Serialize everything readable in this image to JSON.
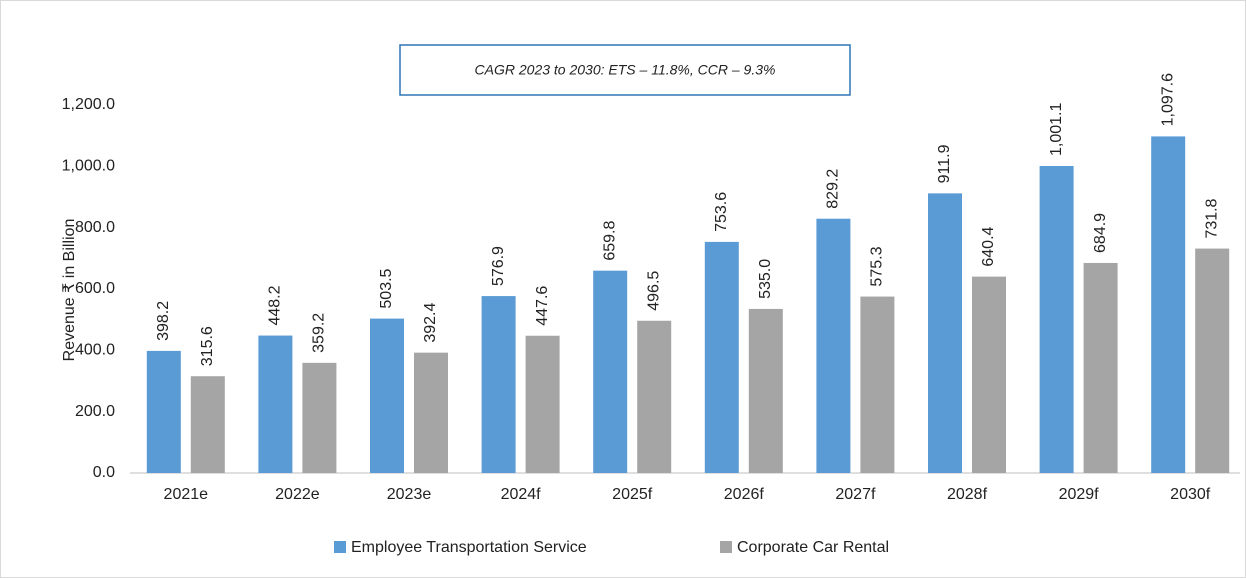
{
  "chart_data": {
    "type": "bar",
    "annotation": "CAGR 2023 to 2030: ETS – 11.8%, CCR – 9.3%",
    "y_label": "Revenue ₹ in Billion",
    "categories": [
      "2021e",
      "2022e",
      "2023e",
      "2024f",
      "2025f",
      "2026f",
      "2027f",
      "2028f",
      "2029f",
      "2030f"
    ],
    "series": [
      {
        "name": "Employee Transportation Service",
        "color": "#5b9bd5",
        "values": [
          398.2,
          448.2,
          503.5,
          576.9,
          659.8,
          753.6,
          829.2,
          911.9,
          1001.1,
          1097.6
        ],
        "value_labels": [
          "398.2",
          "448.2",
          "503.5",
          "576.9",
          "659.8",
          "753.6",
          "829.2",
          "911.9",
          "1,001.1",
          "1,097.6"
        ]
      },
      {
        "name": "Corporate Car Rental",
        "color": "#a5a5a5",
        "values": [
          315.6,
          359.2,
          392.4,
          447.6,
          496.5,
          535.0,
          575.3,
          640.4,
          684.9,
          731.8
        ],
        "value_labels": [
          "315.6",
          "359.2",
          "392.4",
          "447.6",
          "496.5",
          "535.0",
          "575.3",
          "640.4",
          "684.9",
          "731.8"
        ]
      }
    ],
    "ylim": [
      0,
      1200
    ],
    "yticks": [
      {
        "value": 0,
        "label": "0.0"
      },
      {
        "value": 200,
        "label": "200.0"
      },
      {
        "value": 400,
        "label": "400.0"
      },
      {
        "value": 600,
        "label": "600.0"
      },
      {
        "value": 800,
        "label": "800.0"
      },
      {
        "value": 1000,
        "label": "1,000.0"
      },
      {
        "value": 1200,
        "label": "1,200.0"
      }
    ],
    "grid": false,
    "legend": "bottom"
  }
}
